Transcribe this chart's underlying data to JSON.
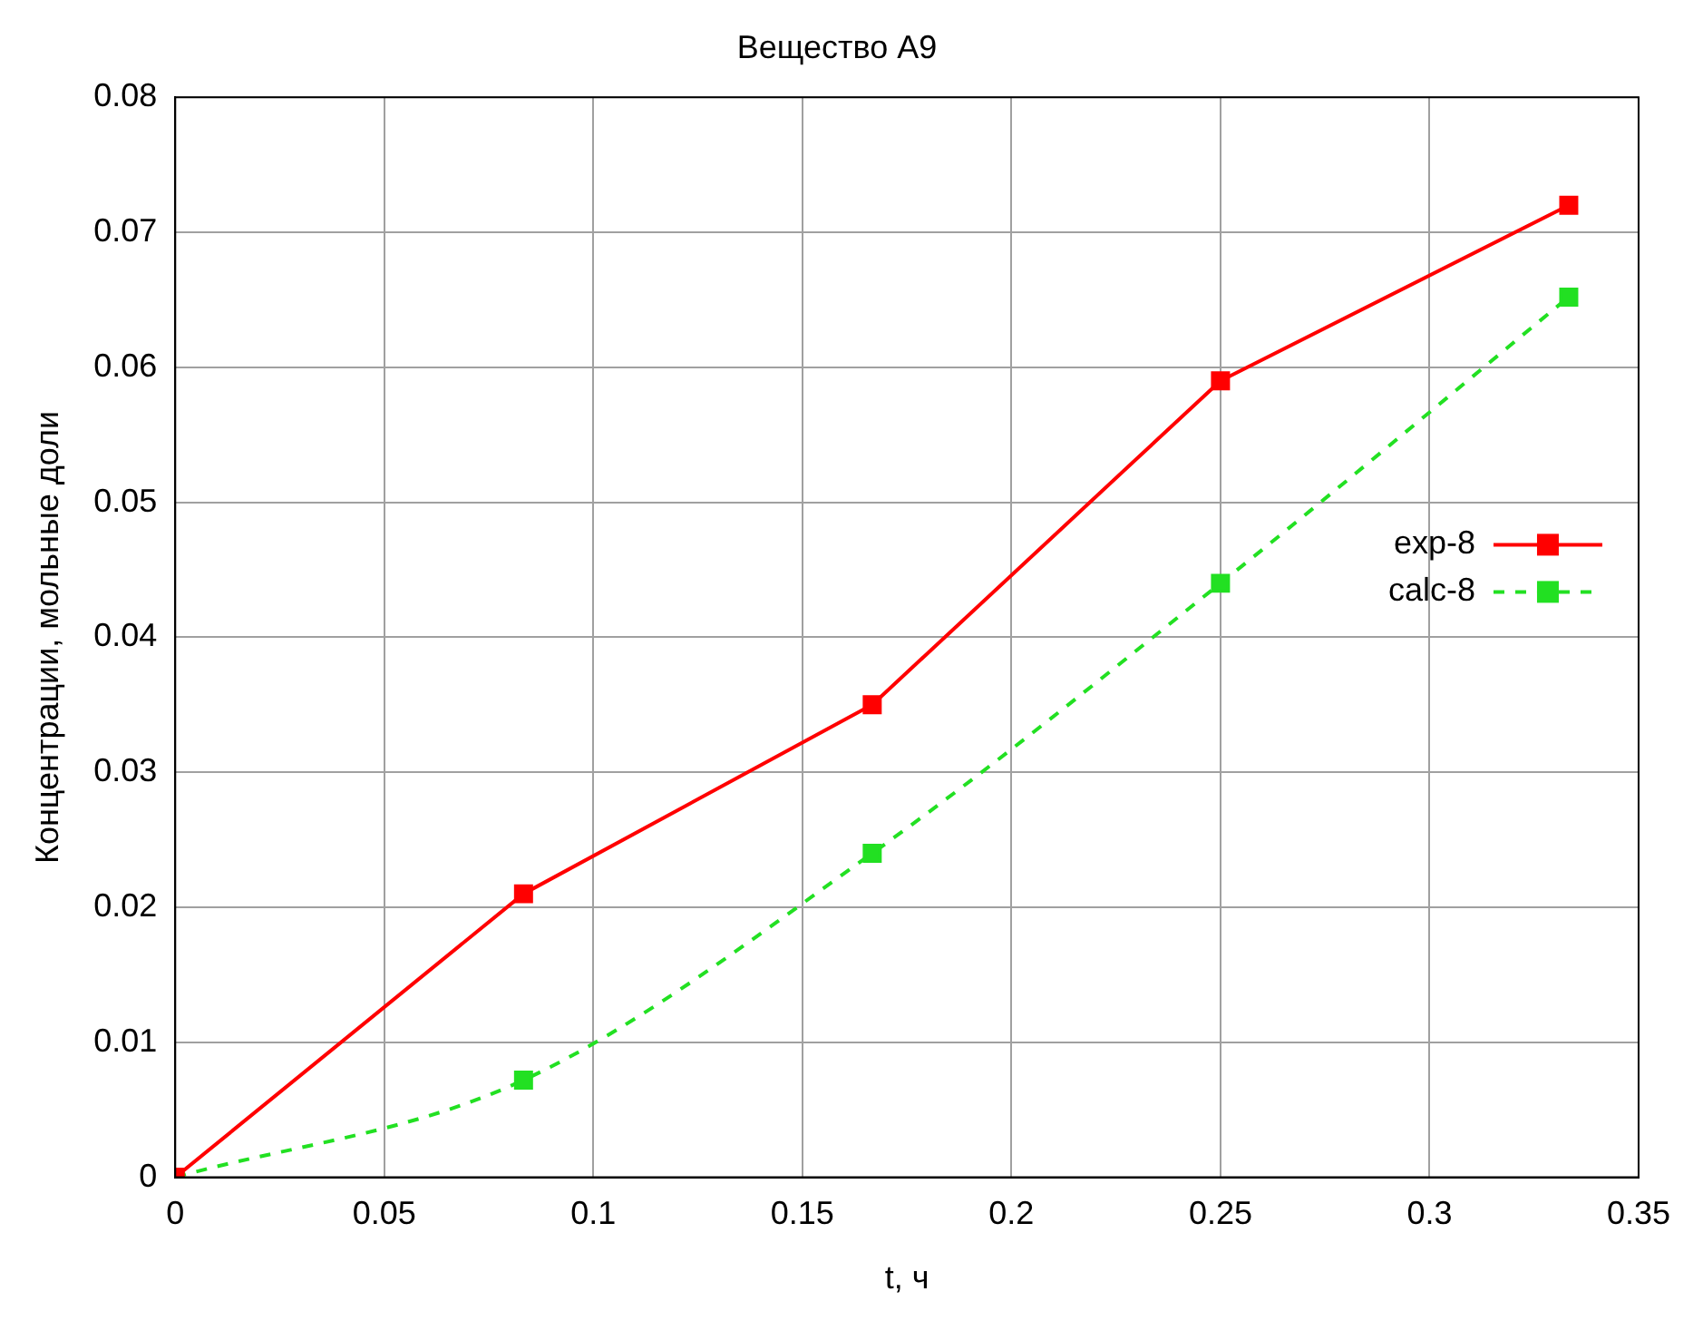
{
  "chart_data": {
    "type": "line",
    "title": "Вещество A9",
    "xlabel": "t, ч",
    "ylabel": "Концентрации, мольные доли",
    "x": [
      0,
      0.0833,
      0.1667,
      0.25,
      0.3333
    ],
    "series": [
      {
        "name": "exp-8",
        "color": "#ff0000",
        "line_style": "solid",
        "values": [
          0,
          0.021,
          0.035,
          0.059,
          0.072
        ]
      },
      {
        "name": "calc-8",
        "color": "#22e022",
        "line_style": "dashed",
        "values": [
          0,
          0.0072,
          0.024,
          0.044,
          0.0652
        ]
      }
    ],
    "xlim": [
      0,
      0.35
    ],
    "xticks": [
      0,
      0.05,
      0.1,
      0.15,
      0.2,
      0.25,
      0.3,
      0.35
    ],
    "ylim": [
      0,
      0.08
    ],
    "yticks": [
      0,
      0.01,
      0.02,
      0.03,
      0.04,
      0.05,
      0.06,
      0.07,
      0.08
    ],
    "grid": true,
    "legend": "right",
    "marker": "square"
  }
}
